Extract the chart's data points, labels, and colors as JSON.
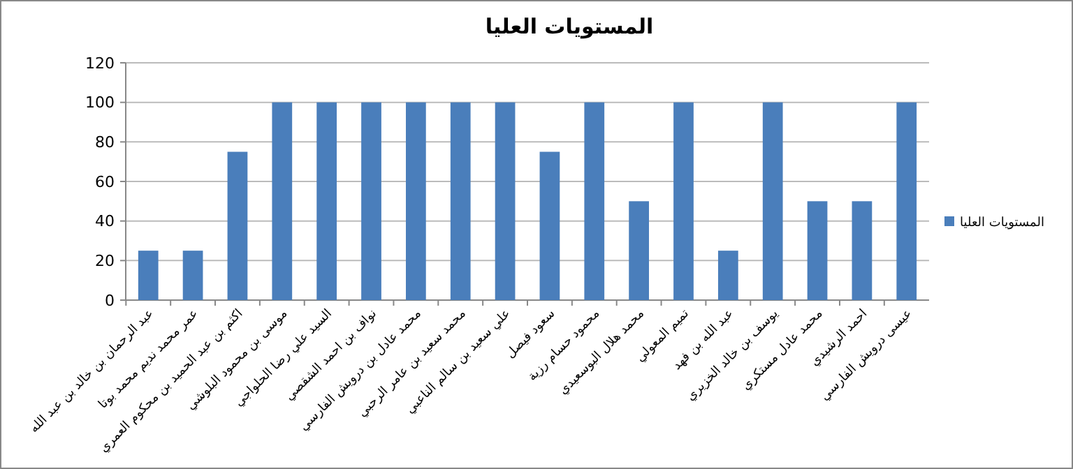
{
  "chart_data": {
    "type": "bar",
    "title": "المستويات العليا",
    "categories": [
      "عبد الرحمان بن خالد بن عبد الله",
      "عمر محمد نديم محمد بوتا",
      "اكثم بن عبد الحميد بن محكوم العمري",
      "موسى بن محمود البلوشي",
      "السيد علي رضا الحلواجي",
      "نواف بن احمد الشقصي",
      "محمد عادل بن درويش الفارسي",
      "محمد سعيد بن عامر الرحبي",
      "علي سعيد بن سالم الناعبي",
      "سعود فيصل",
      "محمود حسام رزية",
      "محمد هلال البوسعيدي",
      "تميم المعولي",
      "عبد الله بن فهد",
      "يوسف بن خالد الخزيري",
      "محمد عادل مستكري",
      "احمد الرشيدي",
      "عيسى درويش الفارسي"
    ],
    "series": [
      {
        "name": "المستويات العليا",
        "color": "#4a7ebb",
        "values": [
          25,
          25,
          75,
          100,
          100,
          100,
          100,
          100,
          100,
          75,
          100,
          50,
          100,
          25,
          100,
          50,
          50,
          100
        ]
      }
    ],
    "ylim": [
      0,
      120
    ],
    "yticks": [
      0,
      20,
      40,
      60,
      80,
      100,
      120
    ],
    "grid": "y",
    "legend": "right"
  }
}
